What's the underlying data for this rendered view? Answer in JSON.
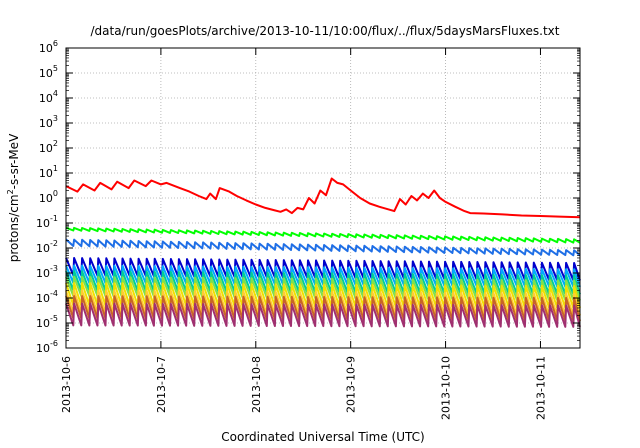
{
  "chart_data": {
    "type": "line",
    "title": "/data/run/goesPlots/archive/2013-10-11/10:00/flux/../flux/5daysMarsFluxes.txt",
    "xlabel": "Coordinated Universal Time (UTC)",
    "ylabel": "protons/cm²-s-sr-MeV",
    "ylabel_parts": {
      "pre": "protons/cm",
      "sup": "2",
      "post": "-s-sr-MeV"
    },
    "y_scale": "log",
    "ylim": [
      1e-06,
      1000000.0
    ],
    "y_ticks": [
      {
        "base": "10",
        "exp": "-6"
      },
      {
        "base": "10",
        "exp": "-5"
      },
      {
        "base": "10",
        "exp": "-4"
      },
      {
        "base": "10",
        "exp": "-3"
      },
      {
        "base": "10",
        "exp": "-2"
      },
      {
        "base": "10",
        "exp": "-1"
      },
      {
        "base": "10",
        "exp": "0"
      },
      {
        "base": "10",
        "exp": "1"
      },
      {
        "base": "10",
        "exp": "2"
      },
      {
        "base": "10",
        "exp": "3"
      },
      {
        "base": "10",
        "exp": "4"
      },
      {
        "base": "10",
        "exp": "5"
      },
      {
        "base": "10",
        "exp": "6"
      }
    ],
    "x_ticks": [
      "2013-10-6",
      "2013-10-7",
      "2013-10-8",
      "2013-10-9",
      "2013-10-10",
      "2013-10-11"
    ],
    "xlim": [
      "2013-10-06T00:00",
      "2013-10-11T10:00"
    ],
    "grid": true,
    "series": [
      {
        "color": "#ff0000",
        "points": [
          [
            0.0,
            3.0
          ],
          [
            0.12,
            1.8
          ],
          [
            0.18,
            3.5
          ],
          [
            0.3,
            2.0
          ],
          [
            0.36,
            4.0
          ],
          [
            0.48,
            2.2
          ],
          [
            0.54,
            4.5
          ],
          [
            0.66,
            2.5
          ],
          [
            0.72,
            5.0
          ],
          [
            0.84,
            3.0
          ],
          [
            0.9,
            5.0
          ],
          [
            1.0,
            3.5
          ],
          [
            1.06,
            4.0
          ],
          [
            1.2,
            2.5
          ],
          [
            1.3,
            1.8
          ],
          [
            1.4,
            1.2
          ],
          [
            1.48,
            0.9
          ],
          [
            1.52,
            1.5
          ],
          [
            1.58,
            0.9
          ],
          [
            1.62,
            2.5
          ],
          [
            1.72,
            1.8
          ],
          [
            1.8,
            1.2
          ],
          [
            1.9,
            0.8
          ],
          [
            2.0,
            0.55
          ],
          [
            2.1,
            0.4
          ],
          [
            2.2,
            0.32
          ],
          [
            2.26,
            0.28
          ],
          [
            2.32,
            0.35
          ],
          [
            2.38,
            0.25
          ],
          [
            2.44,
            0.4
          ],
          [
            2.5,
            0.35
          ],
          [
            2.56,
            1.0
          ],
          [
            2.62,
            0.6
          ],
          [
            2.68,
            2.0
          ],
          [
            2.74,
            1.3
          ],
          [
            2.8,
            6.0
          ],
          [
            2.86,
            4.0
          ],
          [
            2.92,
            3.5
          ],
          [
            3.0,
            2.0
          ],
          [
            3.1,
            1.0
          ],
          [
            3.2,
            0.6
          ],
          [
            3.3,
            0.45
          ],
          [
            3.4,
            0.35
          ],
          [
            3.46,
            0.3
          ],
          [
            3.52,
            0.9
          ],
          [
            3.58,
            0.55
          ],
          [
            3.64,
            1.2
          ],
          [
            3.7,
            0.8
          ],
          [
            3.76,
            1.5
          ],
          [
            3.82,
            1.0
          ],
          [
            3.88,
            2.0
          ],
          [
            3.94,
            1.0
          ],
          [
            4.0,
            0.7
          ],
          [
            4.1,
            0.45
          ],
          [
            4.2,
            0.3
          ],
          [
            4.26,
            0.25
          ],
          [
            4.4,
            0.24
          ],
          [
            4.6,
            0.22
          ],
          [
            4.8,
            0.2
          ],
          [
            5.0,
            0.19
          ],
          [
            5.2,
            0.18
          ],
          [
            5.42,
            0.17
          ]
        ]
      },
      {
        "color": "#00ff00",
        "spike_period": 0.085,
        "hi_start": 0.065,
        "hi_end": 0.022,
        "lo_start": 0.05,
        "lo_end": 0.016
      },
      {
        "color": "#1f6fe6",
        "spike_period": 0.085,
        "hi_start": 0.022,
        "hi_end": 0.008,
        "lo_start": 0.012,
        "lo_end": 0.005
      },
      {
        "color": "#0000cc",
        "spike_period": 0.085,
        "hi_start": 0.004,
        "hi_end": 0.0025,
        "lo_start": 0.0008,
        "lo_end": 0.0005
      },
      {
        "color": "#00aaff",
        "spike_period": 0.085,
        "hi_start": 0.002,
        "hi_end": 0.0014,
        "lo_start": 0.0004,
        "lo_end": 0.00028
      },
      {
        "color": "#00cc99",
        "spike_period": 0.085,
        "hi_start": 0.0012,
        "hi_end": 0.0008,
        "lo_start": 0.0002,
        "lo_end": 0.00014
      },
      {
        "color": "#80e04a",
        "spike_period": 0.085,
        "hi_start": 0.0007,
        "hi_end": 0.0005,
        "lo_start": 0.00012,
        "lo_end": 8e-05
      },
      {
        "color": "#f0e000",
        "spike_period": 0.085,
        "hi_start": 0.0004,
        "hi_end": 0.0003,
        "lo_start": 5e-05,
        "lo_end": 4e-05
      },
      {
        "color": "#ffcc33",
        "spike_period": 0.085,
        "hi_start": 0.0002,
        "hi_end": 0.00015,
        "lo_start": 2.5e-05,
        "lo_end": 2e-05
      },
      {
        "color": "#c86428",
        "spike_period": 0.085,
        "hi_start": 0.00012,
        "hi_end": 0.0001,
        "lo_start": 1.5e-05,
        "lo_end": 1.2e-05
      },
      {
        "color": "#a03070",
        "spike_period": 0.085,
        "hi_start": 6e-05,
        "hi_end": 5e-05,
        "lo_start": 8e-06,
        "lo_end": 7e-06
      }
    ]
  }
}
